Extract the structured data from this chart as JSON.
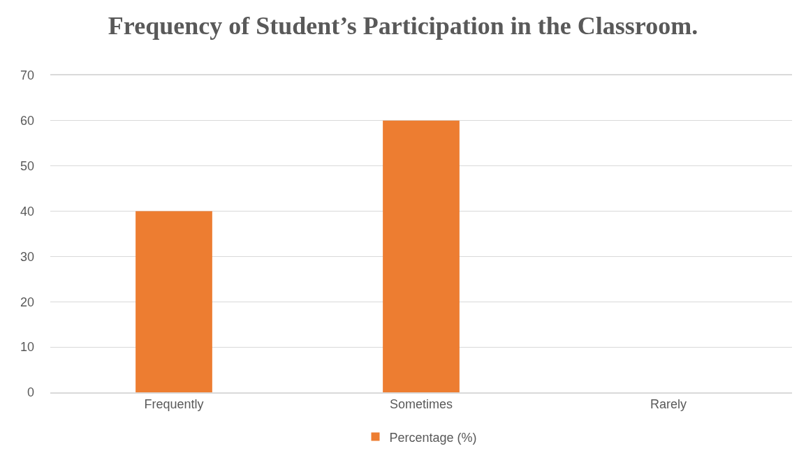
{
  "chart_data": {
    "type": "bar",
    "title": "Frequency of Student’s Participation in the Classroom.",
    "categories": [
      "Frequently",
      "Sometimes",
      "Rarely"
    ],
    "series": [
      {
        "name": "Percentage (%)",
        "color": "#ed7d31",
        "values": [
          40,
          60,
          0
        ]
      }
    ],
    "ylim": [
      0,
      70
    ],
    "yticks": [
      0,
      10,
      20,
      30,
      40,
      50,
      60,
      70
    ],
    "grid": "y",
    "legend": "bottom"
  }
}
